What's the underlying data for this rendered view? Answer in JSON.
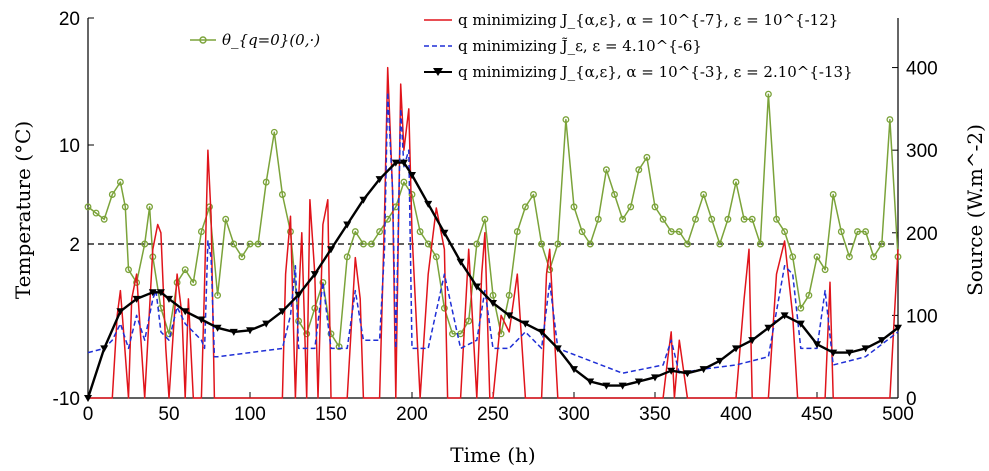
{
  "chart_data": {
    "type": "line",
    "xlabel": "Time (h)",
    "ylabel_left": "Temperature (°C)",
    "ylabel_right": "Source (W.m^-2)",
    "xlim": [
      0,
      500
    ],
    "ylim_left": [
      -10,
      20
    ],
    "ylim_right": [
      0,
      460
    ],
    "x_ticks": [
      "0",
      "50",
      "100",
      "150",
      "200",
      "250",
      "300",
      "350",
      "400",
      "450",
      "500"
    ],
    "y_left_ticks": [
      "-10",
      "2",
      "10",
      "20"
    ],
    "y_right_ticks": [
      "0",
      "100",
      "200",
      "300",
      "400"
    ],
    "reference_line": {
      "axis": "left",
      "y": 2,
      "style": "dashed"
    },
    "legend_top_left": "θ_{q=0}(0,·)",
    "legend_top_right": [
      "q minimizing J_{α,ε}, α = 10^{-7}, ε = 10^{-12}",
      "q minimizing J̃_ε, ε = 4.10^{-6}",
      "q minimizing J_{α,ε}, α = 10^{-3}, ε = 2.10^{-13}"
    ],
    "series": [
      {
        "name": "θ_{q=0}(0,·)",
        "axis": "left",
        "color": "#7ba33a",
        "marker": "circle",
        "x": [
          0,
          5,
          10,
          15,
          20,
          23,
          25,
          30,
          35,
          38,
          40,
          45,
          50,
          55,
          60,
          65,
          70,
          75,
          80,
          85,
          90,
          95,
          100,
          105,
          110,
          115,
          120,
          125,
          130,
          135,
          140,
          145,
          150,
          155,
          160,
          165,
          170,
          175,
          180,
          185,
          190,
          195,
          200,
          205,
          210,
          215,
          220,
          225,
          230,
          235,
          240,
          245,
          250,
          255,
          260,
          265,
          270,
          275,
          280,
          285,
          290,
          295,
          300,
          305,
          310,
          315,
          320,
          325,
          330,
          335,
          340,
          345,
          350,
          355,
          360,
          365,
          370,
          375,
          380,
          385,
          390,
          395,
          400,
          405,
          410,
          415,
          420,
          425,
          430,
          435,
          440,
          445,
          450,
          455,
          460,
          465,
          470,
          475,
          480,
          485,
          490,
          495,
          500
        ],
        "y": [
          5,
          4.5,
          4,
          6,
          7,
          5,
          0,
          -1,
          2,
          5,
          1,
          -3,
          -5,
          -1,
          0,
          -1,
          3,
          5,
          -2,
          4,
          2,
          1,
          2,
          2,
          7,
          11,
          6,
          3,
          -4,
          -5,
          -3,
          -1,
          -5,
          -6,
          1,
          3,
          2,
          2,
          3,
          4,
          5,
          7,
          6,
          3,
          2,
          1,
          -3,
          -5,
          -5,
          -4,
          2,
          4,
          -2,
          -5,
          -2,
          3,
          5,
          6,
          2,
          0,
          2,
          12,
          5,
          3,
          2,
          4,
          8,
          6,
          4,
          5,
          8,
          9,
          5,
          4,
          3,
          3,
          2,
          4,
          6,
          4,
          2,
          4,
          7,
          4,
          4,
          2,
          14,
          4,
          3,
          1,
          -3,
          -2,
          1,
          0,
          6,
          3,
          1,
          3,
          3,
          1,
          2,
          12,
          1
        ]
      },
      {
        "name": "q minimizing J_{α,ε}, α = 10^{-7}, ε = 10^{-12}",
        "axis": "right",
        "color": "#e0141b",
        "x": [
          0,
          15,
          18,
          20,
          22,
          25,
          27,
          30,
          35,
          40,
          43,
          45,
          48,
          50,
          55,
          58,
          60,
          62,
          65,
          70,
          72,
          74,
          76,
          78,
          80,
          120,
          122,
          125,
          128,
          130,
          132,
          135,
          137,
          140,
          142,
          145,
          148,
          150,
          160,
          165,
          168,
          170,
          175,
          180,
          183,
          185,
          188,
          190,
          193,
          195,
          198,
          200,
          205,
          210,
          215,
          218,
          220,
          222,
          225,
          230,
          235,
          240,
          243,
          245,
          248,
          250,
          255,
          260,
          265,
          270,
          275,
          280,
          283,
          285,
          290,
          355,
          358,
          360,
          362,
          365,
          370,
          375,
          380,
          400,
          405,
          408,
          410,
          415,
          420,
          425,
          430,
          435,
          438,
          440,
          445,
          450,
          455,
          458,
          460,
          465,
          470,
          480,
          490,
          495,
          500
        ],
        "y": [
          0,
          0,
          100,
          130,
          80,
          0,
          120,
          150,
          0,
          180,
          210,
          200,
          60,
          0,
          150,
          100,
          0,
          120,
          0,
          0,
          140,
          300,
          220,
          0,
          0,
          0,
          150,
          220,
          0,
          120,
          200,
          0,
          240,
          150,
          0,
          210,
          240,
          0,
          0,
          170,
          120,
          0,
          0,
          0,
          220,
          400,
          250,
          0,
          380,
          300,
          350,
          200,
          0,
          150,
          230,
          200,
          180,
          0,
          0,
          0,
          180,
          0,
          150,
          200,
          0,
          0,
          100,
          80,
          150,
          0,
          0,
          0,
          150,
          180,
          0,
          0,
          50,
          80,
          0,
          70,
          0,
          0,
          0,
          0,
          120,
          180,
          0,
          0,
          0,
          150,
          190,
          100,
          0,
          0,
          0,
          0,
          0,
          140,
          0,
          0,
          0,
          0,
          0,
          0,
          180
        ]
      },
      {
        "name": "q minimizing J̃_ε, ε = 4.10^{-6}",
        "axis": "right",
        "color": "#1f2fd6",
        "x": [
          0,
          10,
          15,
          20,
          25,
          30,
          35,
          40,
          42,
          45,
          50,
          55,
          60,
          65,
          70,
          72,
          74,
          76,
          78,
          80,
          100,
          120,
          125,
          128,
          130,
          140,
          145,
          150,
          160,
          165,
          170,
          180,
          183,
          185,
          188,
          190,
          193,
          195,
          198,
          200,
          210,
          220,
          230,
          240,
          245,
          250,
          260,
          270,
          280,
          285,
          290,
          330,
          355,
          360,
          365,
          380,
          400,
          420,
          430,
          435,
          440,
          450,
          455,
          460,
          480,
          500
        ],
        "y": [
          55,
          60,
          70,
          90,
          60,
          100,
          70,
          120,
          130,
          80,
          70,
          110,
          90,
          80,
          70,
          60,
          190,
          170,
          50,
          50,
          55,
          60,
          100,
          160,
          60,
          60,
          140,
          60,
          60,
          130,
          70,
          70,
          180,
          370,
          250,
          60,
          350,
          280,
          300,
          60,
          60,
          150,
          60,
          70,
          130,
          60,
          60,
          80,
          60,
          140,
          60,
          30,
          40,
          70,
          30,
          35,
          40,
          50,
          160,
          150,
          60,
          60,
          130,
          40,
          50,
          80
        ]
      },
      {
        "name": "q minimizing J_{α,ε}, α = 10^{-3}, ε = 2.10^{-13}",
        "axis": "right",
        "color": "#000000",
        "marker": "triangle-down",
        "x": [
          0,
          10,
          20,
          30,
          40,
          45,
          50,
          60,
          70,
          80,
          90,
          100,
          110,
          120,
          130,
          140,
          150,
          160,
          170,
          180,
          190,
          195,
          200,
          210,
          220,
          230,
          240,
          250,
          260,
          270,
          280,
          290,
          300,
          310,
          320,
          330,
          340,
          350,
          360,
          370,
          380,
          390,
          400,
          410,
          420,
          430,
          440,
          450,
          460,
          470,
          480,
          490,
          500
        ],
        "y": [
          0,
          60,
          105,
          120,
          128,
          128,
          120,
          105,
          95,
          85,
          80,
          82,
          90,
          105,
          125,
          150,
          180,
          210,
          240,
          265,
          285,
          285,
          270,
          235,
          200,
          165,
          135,
          115,
          100,
          90,
          80,
          60,
          35,
          20,
          15,
          15,
          20,
          25,
          33,
          30,
          35,
          45,
          60,
          70,
          85,
          100,
          90,
          65,
          55,
          55,
          60,
          70,
          85
        ]
      }
    ]
  }
}
